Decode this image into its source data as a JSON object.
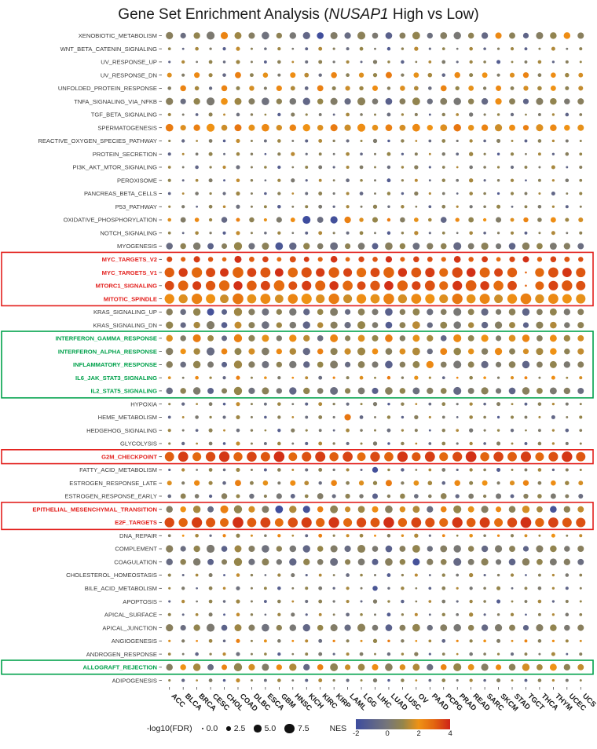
{
  "title": {
    "prefix": "Gene Set Enrichment Analysis (",
    "gene": "NUSAP1",
    "suffix": " High vs Low)"
  },
  "chart_data": {
    "type": "scatter",
    "subtype": "bubble-matrix",
    "title": "Gene Set Enrichment Analysis (NUSAP1 High vs Low)",
    "xlabel": "",
    "ylabel": "",
    "x_categories": [
      "ACC",
      "BLCA",
      "BRCA",
      "CESC",
      "CHOL",
      "COAD",
      "DLBC",
      "ESCA",
      "GBM",
      "HNSC",
      "KICH",
      "KIRC",
      "KIRP",
      "LAML",
      "LGG",
      "LIHC",
      "LUAD",
      "LUSC",
      "OV",
      "PAAD",
      "PCPG",
      "PRAD",
      "READ",
      "SARC",
      "SKCM",
      "STAD",
      "TGCT",
      "THCA",
      "THYM",
      "UCEC",
      "UCS"
    ],
    "colors": {
      "red": "#e3201d",
      "green": "#00a14b",
      "label": "#3a3a3a",
      "axis": "#303030"
    },
    "size_legend": {
      "label": "-log10(FDR)",
      "values": [
        "0.0",
        "2.5",
        "5.0",
        "7.5"
      ]
    },
    "color_scale": {
      "label": "NES",
      "min": -2,
      "max": 4,
      "ticks": [
        "-2",
        "0",
        "2",
        "4"
      ],
      "stops": [
        [
          -2,
          "#3d4c9e"
        ],
        [
          0,
          "#76767a"
        ],
        [
          1,
          "#95854a"
        ],
        [
          2,
          "#ef9215"
        ],
        [
          3,
          "#e2640f"
        ],
        [
          4,
          "#ce2318"
        ]
      ]
    },
    "boxes": [
      {
        "start": 17,
        "end": 20,
        "color": "#e3201d"
      },
      {
        "start": 23,
        "end": 27,
        "color": "#00a14b"
      },
      {
        "start": 32,
        "end": 32,
        "color": "#e3201d"
      },
      {
        "start": 36,
        "end": 37,
        "color": "#e3201d"
      },
      {
        "start": 48,
        "end": 48,
        "color": "#00a14b"
      }
    ],
    "sequences": {
      "A1n": [
        0.9,
        -0.6,
        1.2,
        0.4,
        -1.1,
        1.5,
        0.7,
        -0.3,
        1.1,
        0.2,
        -0.8,
        1.3,
        0.6,
        -0.4,
        1.0,
        0.3,
        -1.2,
        0.8,
        1.4,
        -0.5,
        0.9,
        0.1,
        1.2,
        -0.7,
        0.5,
        1.1,
        -0.9,
        0.7,
        1.3,
        0.2,
        0.8
      ],
      "A1f": [
        1.2,
        0.6,
        1.8,
        0.9,
        1.5,
        2.2,
        0.7,
        1.1,
        1.6,
        0.5,
        1.3,
        2.0,
        0.8,
        1.4,
        1.9,
        0.6,
        1.7,
        1.0,
        2.3,
        0.8,
        1.2,
        0.5,
        1.8,
        1.1,
        0.9,
        1.5,
        1.3,
        0.7,
        2.1,
        0.6,
        1.4
      ],
      "A2n": [
        -0.8,
        1.3,
        0.2,
        0.9,
        -0.4,
        1.1,
        0.5,
        -1.0,
        0.7,
        1.4,
        -0.3,
        0.8,
        0.1,
        1.2,
        -0.6,
        0.4,
        1.0,
        -0.9,
        0.6,
        1.3,
        0.3,
        -0.5,
        1.1,
        0.7,
        -1.2,
        0.9,
        0.4,
        1.2,
        -0.7,
        0.6,
        1.0
      ],
      "A2f": [
        0.8,
        1.6,
        0.5,
        1.9,
        1.1,
        2.2,
        0.7,
        1.3,
        1.8,
        0.6,
        1.4,
        2.0,
        0.9,
        1.5,
        0.7,
        2.3,
        1.0,
        1.7,
        0.5,
        1.2,
        1.9,
        0.8,
        1.6,
        1.1,
        2.1,
        0.6,
        1.3,
        1.8,
        0.9,
        1.4,
        0.7
      ],
      "A3n": [
        1.1,
        0.3,
        -0.7,
        0.8,
        1.4,
        -0.2,
        0.6,
        1.0,
        -1.1,
        0.5,
        0.9,
        0.2,
        -0.6,
        1.2,
        0.4,
        0.8,
        -0.3,
        1.1,
        0.6,
        -0.9,
        0.7,
        1.3,
        0.1,
        0.5,
        1.0,
        -0.4,
        0.8,
        0.3,
        1.2,
        -0.8,
        0.6
      ],
      "A3f": [
        1.5,
        0.7,
        1.2,
        2.1,
        0.6,
        1.8,
        1.0,
        0.5,
        1.6,
        2.2,
        0.8,
        1.3,
        0.6,
        1.9,
        1.1,
        0.7,
        2.0,
        0.9,
        1.4,
        0.6,
        1.7,
        1.2,
        2.3,
        0.8,
        1.0,
        1.6,
        0.5,
        1.3,
        0.9,
        1.8,
        1.2
      ],
      "B1n": [
        2.1,
        1.8,
        2.4,
        2.0,
        1.6,
        2.6,
        1.9,
        2.2,
        1.7,
        2.3,
        2.0,
        1.8,
        2.5,
        1.6,
        2.1,
        1.9,
        2.4,
        1.7,
        2.2,
        2.0,
        1.8,
        2.6,
        1.9,
        2.3,
        1.6,
        2.1,
        2.4,
        1.8,
        2.2,
        2.0,
        1.9
      ],
      "B1f": [
        3.5,
        2.8,
        4.2,
        3.1,
        2.5,
        4.8,
        3.3,
        3.9,
        2.7,
        4.1,
        3.4,
        2.9,
        4.5,
        2.6,
        3.7,
        3.2,
        4.3,
        2.8,
        3.8,
        3.3,
        2.9,
        4.6,
        3.1,
        4.0,
        2.6,
        3.6,
        4.2,
        3.0,
        3.8,
        3.4,
        3.1
      ],
      "C1n": [
        3.4,
        3.0,
        3.6,
        3.2,
        2.9,
        3.8,
        3.1,
        3.5,
        2.8,
        3.3,
        3.6,
        3.0,
        3.7,
        2.9,
        3.4,
        3.2,
        3.8,
        3.0,
        3.5,
        3.3,
        2.9,
        3.7,
        3.1,
        3.6,
        2.8,
        3.4,
        3.8,
        3.0,
        3.5,
        3.2,
        3.3
      ],
      "C1f": [
        7.2,
        6.5,
        7.8,
        6.9,
        6.2,
        8.1,
        6.7,
        7.5,
        6.1,
        7.3,
        7.7,
        6.4,
        7.9,
        6.3,
        7.1,
        6.8,
        8.0,
        6.5,
        7.4,
        7.0,
        6.3,
        7.8,
        6.6,
        7.6,
        6.2,
        7.2,
        8.1,
        6.5,
        7.5,
        6.9,
        7.0
      ],
      "C2n": [
        3.1,
        3.6,
        2.9,
        3.4,
        3.7,
        3.0,
        3.5,
        3.2,
        3.8,
        2.9,
        3.3,
        3.6,
        3.1,
        3.5,
        2.8,
        3.4,
        3.0,
        3.7,
        3.2,
        3.6,
        2.9,
        3.4,
        3.8,
        3.0,
        3.5,
        3.1,
        3.6,
        2.9,
        3.3,
        3.7,
        3.2
      ],
      "C2f": [
        6.8,
        7.5,
        6.3,
        7.1,
        7.9,
        6.5,
        7.3,
        6.9,
        8.0,
        6.2,
        7.0,
        7.6,
        6.6,
        7.4,
        6.1,
        7.2,
        6.7,
        7.8,
        6.4,
        7.5,
        6.3,
        7.1,
        8.1,
        6.6,
        7.3,
        6.8,
        7.7,
        6.2,
        7.0,
        7.9,
        6.9
      ],
      "D1n": [
        0.6,
        -0.4,
        0.9,
        0.2,
        -0.9,
        1.1,
        0.5,
        -0.2,
        0.8,
        0.1,
        -0.7,
        1.0,
        0.4,
        -0.5,
        0.7,
        0.2,
        -1.0,
        0.6,
        0.9,
        -0.3,
        0.5,
        0.1,
        0.8,
        -0.6,
        0.3,
        0.7,
        -0.8,
        0.5,
        0.9,
        0.2,
        0.6
      ],
      "D1f": [
        4.5,
        3.8,
        5.2,
        4.1,
        3.5,
        5.8,
        4.3,
        4.9,
        3.7,
        5.1,
        4.4,
        3.9,
        5.5,
        3.6,
        4.7,
        4.2,
        5.3,
        3.8,
        4.8,
        4.3,
        3.9,
        5.6,
        4.1,
        5.0,
        3.6,
        4.6,
        5.2,
        4.0,
        4.8,
        4.4,
        4.1
      ],
      "D2n": [
        -0.5,
        0.8,
        0.3,
        -0.9,
        0.6,
        1.0,
        -0.2,
        0.7,
        0.1,
        -0.7,
        0.9,
        0.4,
        -0.4,
        0.8,
        0.2,
        -1.0,
        0.6,
        0.9,
        -0.3,
        0.5,
        0.8,
        -0.6,
        0.3,
        0.7,
        0.1,
        -0.8,
        0.6,
        0.9,
        0.2,
        0.5,
        -0.4
      ],
      "D2f": [
        5.0,
        3.6,
        4.4,
        5.7,
        3.9,
        4.8,
        4.2,
        5.3,
        3.7,
        4.5,
        5.1,
        3.8,
        4.9,
        4.3,
        5.6,
        3.9,
        4.6,
        4.0,
        5.4,
        3.7,
        4.7,
        5.2,
        3.8,
        4.4,
        5.0,
        4.1,
        3.6,
        4.9,
        4.5,
        3.8,
        4.2
      ],
      "E1n": [
        1.8,
        0.4,
        2.2,
        1.1,
        -0.6,
        2.4,
        0.8,
        1.9,
        0.3,
        2.1,
        1.4,
        -0.4,
        2.3,
        0.7,
        1.8,
        1.0,
        2.5,
        0.5,
        1.9,
        1.2,
        -0.7,
        2.2,
        0.9,
        2.0,
        0.4,
        1.8,
        2.3,
        0.6,
        2.1,
        1.1,
        1.7
      ],
      "E1f": [
        2.8,
        1.5,
        3.6,
        2.2,
        1.8,
        4.1,
        2.0,
        3.2,
        1.4,
        3.5,
        2.6,
        1.7,
        3.9,
        1.9,
        3.0,
        2.3,
        4.2,
        1.6,
        3.3,
        2.5,
        1.8,
        3.8,
        2.1,
        3.4,
        1.5,
        2.9,
        3.7,
        1.9,
        3.2,
        2.4,
        2.7
      ],
      "E2n": [
        0.5,
        2.0,
        1.2,
        -0.5,
        2.3,
        0.9,
        1.7,
        0.4,
        2.2,
        1.3,
        -0.6,
        2.4,
        0.8,
        1.6,
        1.1,
        2.1,
        0.6,
        1.8,
        1.3,
        -0.4,
        2.3,
        1.0,
        1.9,
        0.5,
        2.2,
        0.7,
        1.7,
        1.2,
        2.0,
        0.8,
        1.5
      ],
      "E2f": [
        1.8,
        3.4,
        2.5,
        1.6,
        3.8,
        2.1,
        3.1,
        1.5,
        3.6,
        2.7,
        1.9,
        4.0,
        2.2,
        2.9,
        2.4,
        3.5,
        1.7,
        3.2,
        2.6,
        1.8,
        3.9,
        2.3,
        3.3,
        1.6,
        3.5,
        2.0,
        3.0,
        2.5,
        3.4,
        2.1,
        2.8
      ]
    },
    "rows": [
      {
        "label": "XENOBIOTIC_METABOLISM",
        "hl": null,
        "nes": "D1n",
        "fdr": "D2f",
        "tweaks": [
          [
            4,
            2.3,
            5.0
          ],
          [
            11,
            -1.9,
            4.6
          ],
          [
            24,
            2.2,
            4.2
          ],
          [
            29,
            2.1,
            4.5
          ]
        ]
      },
      {
        "label": "WNT_BETA_CATENIN_SIGNALING",
        "hl": null,
        "nes": "A1n",
        "fdr": "A1f",
        "tweaks": []
      },
      {
        "label": "UV_RESPONSE_UP",
        "hl": null,
        "nes": "A2n",
        "fdr": "A2f",
        "tweaks": []
      },
      {
        "label": "UV_RESPONSE_DN",
        "hl": null,
        "nes": "E1n",
        "fdr": "E1f",
        "tweaks": []
      },
      {
        "label": "UNFOLDED_PROTEIN_RESPONSE",
        "hl": null,
        "nes": "E2n",
        "fdr": "E2f",
        "tweaks": [
          [
            1,
            2.3,
            3.8
          ]
        ]
      },
      {
        "label": "TNFA_SIGNALING_VIA_NFKB",
        "hl": null,
        "nes": "D1n",
        "fdr": "D2f",
        "tweaks": [
          [
            4,
            2.0,
            4.6
          ],
          [
            24,
            2.1,
            4.3
          ]
        ]
      },
      {
        "label": "TGF_BETA_SIGNALING",
        "hl": null,
        "nes": "A3n",
        "fdr": "A3f",
        "tweaks": []
      },
      {
        "label": "SPERMATOGENESIS",
        "hl": null,
        "nes": "B1n",
        "fdr": "D2f",
        "tweaks": [
          [
            0,
            2.5,
            5.3
          ]
        ]
      },
      {
        "label": "REACTIVE_OXYGEN_SPECIES_PATHWAY",
        "hl": null,
        "nes": "A1n",
        "fdr": "A2f",
        "tweaks": []
      },
      {
        "label": "PROTEIN_SECRETION",
        "hl": null,
        "nes": "A2n",
        "fdr": "A3f",
        "tweaks": []
      },
      {
        "label": "PI3K_AKT_MTOR_SIGNALING",
        "hl": null,
        "nes": "A3n",
        "fdr": "A1f",
        "tweaks": []
      },
      {
        "label": "PEROXISOME",
        "hl": null,
        "nes": "A1n",
        "fdr": "A3f",
        "tweaks": []
      },
      {
        "label": "PANCREAS_BETA_CELLS",
        "hl": null,
        "nes": "A2n",
        "fdr": "A1f",
        "tweaks": []
      },
      {
        "label": "P53_PATHWAY",
        "hl": null,
        "nes": "A3n",
        "fdr": "A2f",
        "tweaks": []
      },
      {
        "label": "OXIDATIVE_PHOSPHORYLATION",
        "hl": null,
        "nes": "E1n",
        "fdr": "E2f",
        "tweaks": [
          [
            10,
            -2.0,
            5.6
          ],
          [
            12,
            -1.8,
            5.0
          ],
          [
            13,
            2.4,
            4.4
          ]
        ]
      },
      {
        "label": "NOTCH_SIGNALING",
        "hl": null,
        "nes": "A1n",
        "fdr": "A1f",
        "tweaks": []
      },
      {
        "label": "MYOGENESIS",
        "hl": null,
        "nes": "D2n",
        "fdr": "D1f",
        "tweaks": [
          [
            8,
            -1.5,
            5.4
          ]
        ]
      },
      {
        "label": "MYC_TARGETS_V2",
        "hl": "red",
        "nes": "C1n",
        "fdr": "B1f",
        "tweaks": []
      },
      {
        "label": "MYC_TARGETS_V1",
        "hl": "red",
        "nes": "C2n",
        "fdr": "C1f",
        "tweaks": [
          [
            26,
            3.0,
            0.4
          ]
        ]
      },
      {
        "label": "MTORC1_SIGNALING",
        "hl": "red",
        "nes": "C1n",
        "fdr": "C2f",
        "tweaks": [
          [
            26,
            3.0,
            0.4
          ]
        ]
      },
      {
        "label": "MITOTIC_SPINDLE",
        "hl": "red",
        "nes": "B1n",
        "fdr": "C1f",
        "tweaks": []
      },
      {
        "label": "KRAS_SIGNALING_UP",
        "hl": null,
        "nes": "D1n",
        "fdr": "D1f",
        "tweaks": [
          [
            3,
            -1.7,
            4.9
          ]
        ]
      },
      {
        "label": "KRAS_SIGNALING_DN",
        "hl": null,
        "nes": "A1n",
        "fdr": "D2f",
        "tweaks": []
      },
      {
        "label": "INTERFERON_GAMMA_RESPONSE",
        "hl": "green",
        "nes": "E1n",
        "fdr": "D1f",
        "tweaks": [
          [
            2,
            2.5,
            5.6
          ]
        ]
      },
      {
        "label": "INTERFERON_ALPHA_RESPONSE",
        "hl": "green",
        "nes": "E2n",
        "fdr": "D2f",
        "tweaks": []
      },
      {
        "label": "INFLAMMATORY_RESPONSE",
        "hl": "green",
        "nes": "D1n",
        "fdr": "D1f",
        "tweaks": [
          [
            19,
            2.2,
            5.1
          ]
        ]
      },
      {
        "label": "IL6_JAK_STAT3_SIGNALING",
        "hl": "green",
        "nes": "E1n",
        "fdr": "A1f",
        "tweaks": []
      },
      {
        "label": "IL2_STAT5_SIGNALING",
        "hl": "green",
        "nes": "D2n",
        "fdr": "D1f",
        "tweaks": []
      },
      {
        "label": "HYPOXIA",
        "hl": null,
        "nes": "A1n",
        "fdr": "A2f",
        "tweaks": []
      },
      {
        "label": "HEME_METABOLISM",
        "hl": null,
        "nes": "A2n",
        "fdr": "A1f",
        "tweaks": [
          [
            13,
            2.6,
            4.3
          ]
        ]
      },
      {
        "label": "HEDGEHOG_SIGNALING",
        "hl": null,
        "nes": "A3n",
        "fdr": "A3f",
        "tweaks": []
      },
      {
        "label": "GLYCOLYSIS",
        "hl": null,
        "nes": "A1n",
        "fdr": "A2f",
        "tweaks": []
      },
      {
        "label": "G2M_CHECKPOINT",
        "hl": "red",
        "nes": "C2n",
        "fdr": "C2f",
        "tweaks": []
      },
      {
        "label": "FATTY_ACID_METABOLISM",
        "hl": null,
        "nes": "A2n",
        "fdr": "A2f",
        "tweaks": [
          [
            15,
            -1.8,
            3.7
          ]
        ]
      },
      {
        "label": "ESTROGEN_RESPONSE_LATE",
        "hl": null,
        "nes": "E1n",
        "fdr": "E1f",
        "tweaks": []
      },
      {
        "label": "ESTROGEN_RESPONSE_EARLY",
        "hl": null,
        "nes": "D2n",
        "fdr": "E2f",
        "tweaks": []
      },
      {
        "label": "EPITHELIAL_MESENCHYMAL_TRANSITION",
        "hl": "red",
        "nes": "E2n",
        "fdr": "D1f",
        "tweaks": [
          [
            4,
            2.4,
            5.6
          ],
          [
            8,
            -1.9,
            5.4
          ],
          [
            10,
            -1.7,
            5.0
          ],
          [
            28,
            -1.6,
            4.6
          ]
        ]
      },
      {
        "label": "E2F_TARGETS",
        "hl": "red",
        "nes": "C1n",
        "fdr": "C1f",
        "tweaks": []
      },
      {
        "label": "DNA_REPAIR",
        "hl": null,
        "nes": "E2n",
        "fdr": "A1f",
        "tweaks": []
      },
      {
        "label": "COMPLEMENT",
        "hl": null,
        "nes": "D1n",
        "fdr": "D2f",
        "tweaks": []
      },
      {
        "label": "COAGULATION",
        "hl": null,
        "nes": "D2n",
        "fdr": "D1f",
        "tweaks": [
          [
            18,
            -1.7,
            4.9
          ]
        ]
      },
      {
        "label": "CHOLESTEROL_HOMEOSTASIS",
        "hl": null,
        "nes": "A1n",
        "fdr": "A3f",
        "tweaks": []
      },
      {
        "label": "BILE_ACID_METABOLISM",
        "hl": null,
        "nes": "A3n",
        "fdr": "A2f",
        "tweaks": [
          [
            15,
            -1.5,
            3.1
          ]
        ]
      },
      {
        "label": "APOPTOSIS",
        "hl": null,
        "nes": "A2n",
        "fdr": "A2f",
        "tweaks": []
      },
      {
        "label": "APICAL_SURFACE",
        "hl": null,
        "nes": "A1n",
        "fdr": "A3f",
        "tweaks": []
      },
      {
        "label": "APICAL_JUNCTION",
        "hl": null,
        "nes": "D1n",
        "fdr": "D2f",
        "tweaks": []
      },
      {
        "label": "ANGIOGENESIS",
        "hl": null,
        "nes": "E1n",
        "fdr": "A2f",
        "tweaks": []
      },
      {
        "label": "ANDROGEN_RESPONSE",
        "hl": null,
        "nes": "A3n",
        "fdr": "A1f",
        "tweaks": []
      },
      {
        "label": "ALLOGRAFT_REJECTION",
        "hl": "green",
        "nes": "E2n",
        "fdr": "D1f",
        "tweaks": []
      },
      {
        "label": "ADIPOGENESIS",
        "hl": null,
        "nes": "A1n",
        "fdr": "A2f",
        "tweaks": []
      }
    ]
  }
}
